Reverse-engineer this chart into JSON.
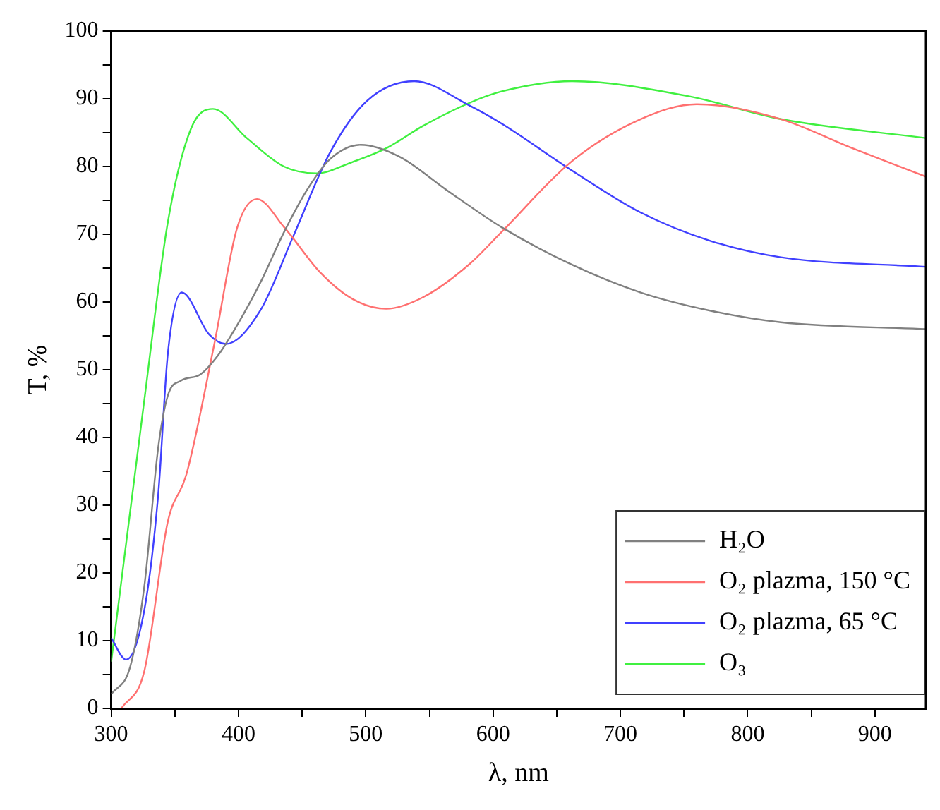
{
  "chart_data": {
    "type": "line",
    "xlabel": "λ, nm",
    "ylabel": "T, %",
    "xlim": [
      300,
      940
    ],
    "ylim": [
      0,
      100
    ],
    "xticks": [
      300,
      {
        "value": 350,
        "label": null
      },
      400,
      {
        "value": 450,
        "label": null
      },
      500,
      {
        "value": 550,
        "label": null
      },
      600,
      {
        "value": 650,
        "label": null
      },
      700,
      {
        "value": 750,
        "label": null
      },
      800,
      {
        "value": 850,
        "label": null
      },
      900
    ],
    "yticks": [
      0,
      {
        "value": 5,
        "label": null
      },
      10,
      {
        "value": 15,
        "label": null
      },
      20,
      {
        "value": 25,
        "label": null
      },
      30,
      {
        "value": 35,
        "label": null
      },
      40,
      {
        "value": 45,
        "label": null
      },
      50,
      {
        "value": 55,
        "label": null
      },
      60,
      {
        "value": 65,
        "label": null
      },
      70,
      {
        "value": 75,
        "label": null
      },
      80,
      {
        "value": 85,
        "label": null
      },
      90,
      {
        "value": 95,
        "label": null
      },
      100
    ],
    "grid": false,
    "legend": "bottom right",
    "marker": "none",
    "line_style": "solid",
    "series": [
      {
        "name": "H₂O",
        "color": "#808080",
        "x": [
          300,
          315,
          326,
          337,
          344.5,
          355,
          370,
          385,
          399,
          417,
          436,
          454,
          472,
          496,
          527,
          563,
          607,
          662,
          716,
          771,
          826,
          940
        ],
        "values": [
          2.1,
          6.2,
          18,
          38.6,
          46.2,
          48.4,
          49.3,
          52.4,
          56.6,
          62.8,
          70.4,
          76.6,
          81.1,
          83.2,
          81.4,
          76.6,
          71,
          65.5,
          61.4,
          58.7,
          57,
          56
        ]
      },
      {
        "name": "O₂ plazma, 150 °C",
        "color": "#ff7070",
        "x": [
          308,
          326,
          344.5,
          359,
          381,
          399,
          414.5,
          436,
          465,
          490,
          516,
          545,
          581.5,
          607,
          662,
          716,
          760,
          826,
          881,
          940
        ],
        "values": [
          0,
          5.5,
          27.6,
          34.5,
          53.8,
          71,
          75.2,
          71,
          64.2,
          60.4,
          59,
          60.7,
          65.6,
          70.4,
          80.8,
          87,
          89.2,
          87,
          82.8,
          78.5
        ]
      },
      {
        "name": "O₂ plazma, 65 °C",
        "color": "#4040ff",
        "x": [
          300,
          311.7,
          326,
          337,
          344.5,
          355.4,
          377,
          390,
          417,
          443,
          472,
          501,
          538,
          581.5,
          607,
          662,
          716,
          771,
          826,
          940
        ],
        "values": [
          10.4,
          7.2,
          14.5,
          31.7,
          52.4,
          61.4,
          55.2,
          53.8,
          58.7,
          69.7,
          82.1,
          89.7,
          92.6,
          89,
          86.3,
          79.4,
          73.2,
          69,
          66.6,
          65.2
        ]
      },
      {
        "name": "O₃",
        "color": "#40f040",
        "x": [
          300,
          326,
          344.5,
          362.7,
          380,
          406.5,
          435.7,
          461,
          490,
          516,
          545,
          581.5,
          607,
          662,
          753,
          826,
          940
        ],
        "values": [
          6.9,
          45.5,
          71.8,
          85.6,
          88.5,
          84.2,
          80,
          79,
          80.7,
          82.7,
          86,
          89.4,
          91.1,
          92.6,
          90.4,
          87,
          84.2
        ]
      }
    ]
  }
}
